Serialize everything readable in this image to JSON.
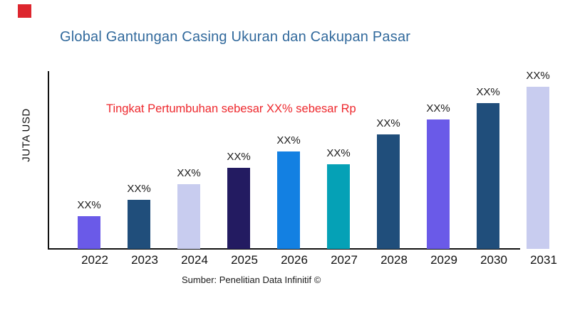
{
  "figure": {
    "title": "Global Gantungan Casing Ukuran dan Cakupan Pasar",
    "title_color": "#31699C",
    "annotation": "Tingkat Pertumbuhan sebesar XX% sebesar Rp",
    "annotation_color": "#EE282D",
    "source": "Sumber: Penelitian Data Infinitif ©",
    "corner_marker_color": "#DD262E",
    "axis_color": "#111111"
  },
  "chart_data": {
    "type": "bar",
    "title": "Global Gantungan Casing Ukuran dan Cakupan Pasar",
    "xlabel": "",
    "ylabel": "JUTA USD",
    "categories": [
      "2022",
      "2023",
      "2024",
      "2025",
      "2026",
      "2027",
      "2028",
      "2029",
      "2030",
      "2031"
    ],
    "values": [
      46,
      69,
      91,
      114,
      137,
      119,
      161,
      182,
      205,
      228
    ],
    "bar_labels": [
      "XX%",
      "XX%",
      "XX%",
      "XX%",
      "XX%",
      "XX%",
      "XX%",
      "XX%",
      "XX%",
      "XX%"
    ],
    "bar_colors": [
      "#6A5AE8",
      "#204E7B",
      "#C8CCEF",
      "#231B61",
      "#1380E2",
      "#05A1B6",
      "#204E7B",
      "#6A5AE8",
      "#204E7B",
      "#C8CCEF"
    ],
    "ylim": [
      0,
      250
    ],
    "grid": false,
    "legend": null,
    "annotation": "Tingkat Pertumbuhan sebesar XX% sebesar Rp"
  }
}
